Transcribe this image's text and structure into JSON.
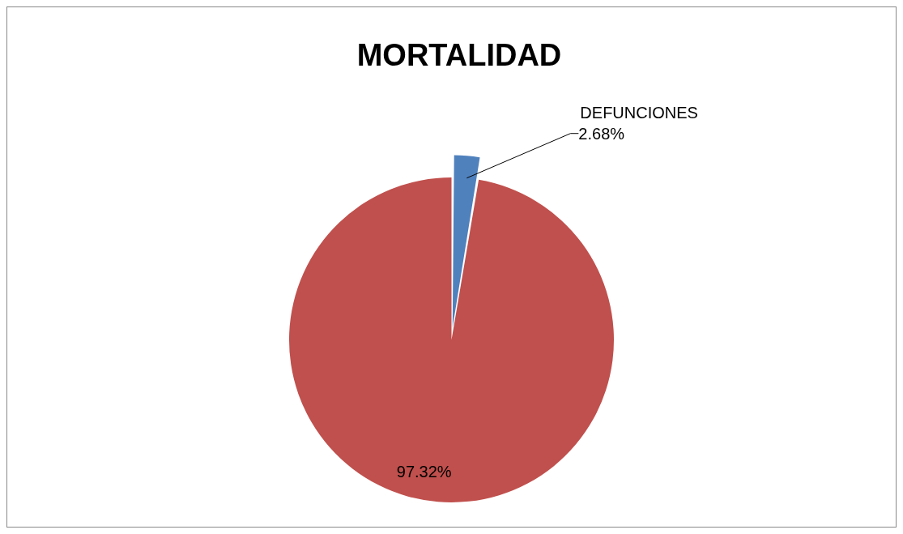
{
  "chart_data": {
    "type": "pie",
    "title": "MORTALIDAD",
    "categories": [
      "DEFUNCIONES",
      null
    ],
    "values": [
      2.68,
      97.32
    ],
    "colors": [
      "#4f81bd",
      "#c0504d"
    ],
    "value_labels": [
      "2.68%",
      "97.32%"
    ],
    "legend": false
  }
}
